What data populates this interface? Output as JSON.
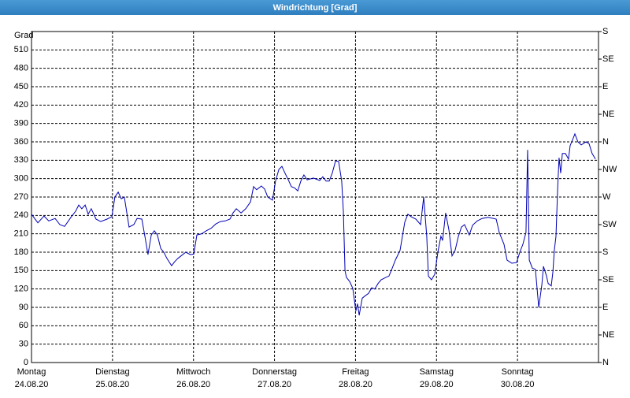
{
  "chart_data": {
    "type": "line",
    "title": "Windrichtung [Grad]",
    "ylabel": "Grad",
    "color": "#0000b4",
    "grid": true,
    "xlim": [
      0,
      168
    ],
    "xticks": [
      {
        "value": 0,
        "label": "Montag",
        "date": "24.08.20"
      },
      {
        "value": 24,
        "label": "Dienstag",
        "date": "25.08.20"
      },
      {
        "value": 48,
        "label": "Mittwoch",
        "date": "26.08.20"
      },
      {
        "value": 72,
        "label": "Donnerstag",
        "date": "27.08.20"
      },
      {
        "value": 96,
        "label": "Freitag",
        "date": "28.08.20"
      },
      {
        "value": 120,
        "label": "Samstag",
        "date": "29.08.20"
      },
      {
        "value": 144,
        "label": "Sonntag",
        "date": "30.08.20"
      }
    ],
    "ylim": [
      0,
      540
    ],
    "yticks": [
      0,
      30,
      60,
      90,
      120,
      150,
      180,
      210,
      240,
      270,
      300,
      330,
      360,
      390,
      420,
      450,
      480,
      510
    ],
    "y2lim": [
      0,
      540
    ],
    "y2ticks": [
      {
        "value": 0,
        "label": "N"
      },
      {
        "value": 45,
        "label": "NE"
      },
      {
        "value": 90,
        "label": "E"
      },
      {
        "value": 135,
        "label": "SE"
      },
      {
        "value": 180,
        "label": "S"
      },
      {
        "value": 225,
        "label": "SW"
      },
      {
        "value": 270,
        "label": "W"
      },
      {
        "value": 315,
        "label": "NW"
      },
      {
        "value": 360,
        "label": "N"
      },
      {
        "value": 405,
        "label": "NE"
      },
      {
        "value": 450,
        "label": "E"
      },
      {
        "value": 495,
        "label": "SE"
      },
      {
        "value": 540,
        "label": "S"
      }
    ],
    "x": [
      0,
      1.9,
      3.7,
      5.1,
      7.0,
      8.4,
      9.8,
      11.7,
      13.1,
      14.0,
      14.9,
      15.9,
      16.8,
      17.7,
      19.1,
      20.5,
      22.4,
      23.8,
      24.7,
      25.7,
      26.6,
      27.5,
      28.9,
      30.3,
      31.3,
      32.7,
      33.6,
      34.5,
      35.5,
      36.4,
      37.3,
      38.3,
      39.2,
      40.1,
      41.5,
      42.5,
      43.4,
      44.3,
      45.7,
      47.1,
      48.1,
      49.0,
      50.4,
      51.8,
      53.2,
      54.6,
      56.0,
      57.4,
      58.8,
      59.7,
      60.7,
      62.1,
      63.5,
      64.9,
      65.8,
      66.7,
      68.1,
      69.1,
      70.0,
      71.4,
      72.3,
      73.3,
      74.2,
      75.1,
      76.1,
      77.0,
      77.9,
      78.9,
      79.8,
      80.7,
      81.7,
      83.5,
      85.4,
      86.3,
      87.3,
      88.2,
      89.1,
      90.1,
      91.0,
      91.9,
      92.4,
      92.9,
      93.3,
      94.3,
      95.2,
      96.1,
      96.6,
      97.1,
      98.0,
      98.9,
      99.9,
      100.8,
      101.7,
      102.7,
      103.6,
      105.0,
      105.9,
      106.9,
      107.8,
      109.2,
      110.6,
      111.5,
      112.5,
      113.9,
      115.3,
      116.2,
      117.1,
      117.6,
      118.5,
      119.5,
      120.4,
      121.3,
      121.8,
      122.7,
      123.7,
      124.6,
      125.5,
      126.5,
      127.4,
      128.3,
      129.7,
      130.7,
      132.1,
      133.5,
      135.3,
      137.7,
      138.6,
      140.0,
      140.9,
      142.3,
      143.7,
      144.7,
      145.6,
      146.5,
      147.0,
      147.5,
      148.4,
      149.3,
      150.3,
      151.2,
      151.7,
      152.6,
      153.1,
      154.0,
      154.5,
      154.9,
      155.4,
      155.9,
      156.3,
      156.8,
      157.3,
      158.2,
      159.1,
      159.6,
      160.5,
      161.0,
      161.9,
      162.9,
      164.3,
      165.2,
      166.1,
      167.1
    ],
    "values": [
      242,
      228,
      239,
      231,
      235,
      225,
      222,
      237,
      247,
      257,
      251,
      257,
      242,
      251,
      234,
      230,
      234,
      238,
      270,
      278,
      267,
      270,
      221,
      225,
      235,
      234,
      206,
      176,
      208,
      215,
      208,
      186,
      180,
      170,
      158,
      165,
      170,
      174,
      180,
      176,
      177,
      208,
      210,
      215,
      219,
      226,
      230,
      231,
      234,
      244,
      251,
      244,
      251,
      262,
      287,
      282,
      288,
      283,
      270,
      265,
      296,
      315,
      320,
      309,
      298,
      287,
      285,
      280,
      296,
      306,
      298,
      301,
      297,
      303,
      296,
      296,
      309,
      329,
      328,
      296,
      247,
      150,
      139,
      132,
      121,
      84,
      96,
      77,
      105,
      109,
      113,
      122,
      120,
      129,
      135,
      139,
      141,
      154,
      167,
      183,
      229,
      242,
      238,
      234,
      225,
      270,
      206,
      141,
      135,
      144,
      180,
      206,
      199,
      244,
      216,
      174,
      183,
      206,
      221,
      225,
      208,
      224,
      231,
      235,
      237,
      234,
      212,
      193,
      167,
      162,
      163,
      180,
      193,
      212,
      347,
      167,
      154,
      152,
      90,
      126,
      157,
      141,
      129,
      125,
      148,
      183,
      206,
      283,
      334,
      309,
      341,
      341,
      332,
      354,
      366,
      373,
      360,
      355,
      360,
      357,
      341,
      332
    ]
  }
}
